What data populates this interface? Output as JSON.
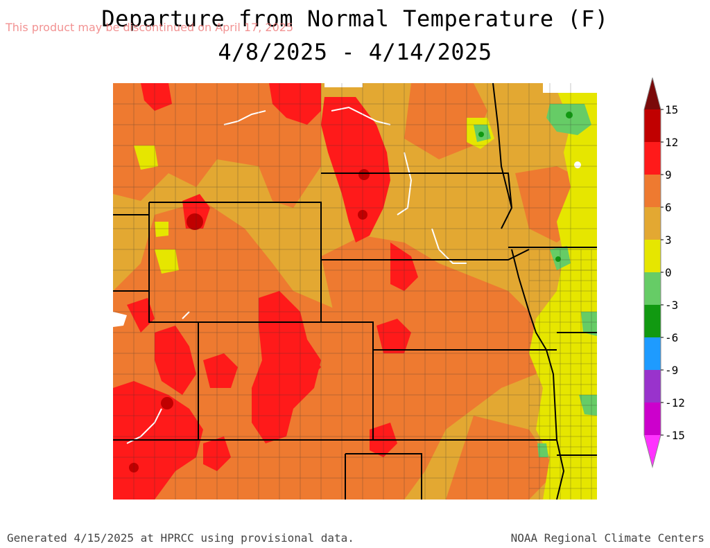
{
  "title_line1": "Departure from Normal Temperature (F)",
  "title_line2": "4/8/2025 - 4/14/2025",
  "watermark": "This product may be discontinued on April 17, 2025",
  "footer_left": "Generated 4/15/2025 at HPRCC using provisional data.",
  "footer_right": "NOAA Regional Climate Centers",
  "legend": {
    "ticks": [
      "15",
      "12",
      "9",
      "6",
      "3",
      "0",
      "-3",
      "-6",
      "-9",
      "-12",
      "-15"
    ],
    "bins": [
      {
        "color": "#7a0a0a"
      },
      {
        "color": "#c00000"
      },
      {
        "color": "#ff1a1a"
      },
      {
        "color": "#ee7a30"
      },
      {
        "color": "#e3a832"
      },
      {
        "color": "#e6e600"
      },
      {
        "color": "#66cc66"
      },
      {
        "color": "#119911"
      },
      {
        "color": "#1e9bff"
      },
      {
        "color": "#9933cc"
      },
      {
        "color": "#cc00cc"
      },
      {
        "color": "#ff33ff"
      }
    ]
  },
  "palette": {
    "base": "#e3a832",
    "warm": "#ee7a30",
    "hot": "#ff1a1a",
    "veryhot": "#c00000",
    "neutral": "#e6e600",
    "cool": "#66cc66",
    "cooler": "#119911",
    "border": "#000000",
    "river": "#ffffff"
  }
}
